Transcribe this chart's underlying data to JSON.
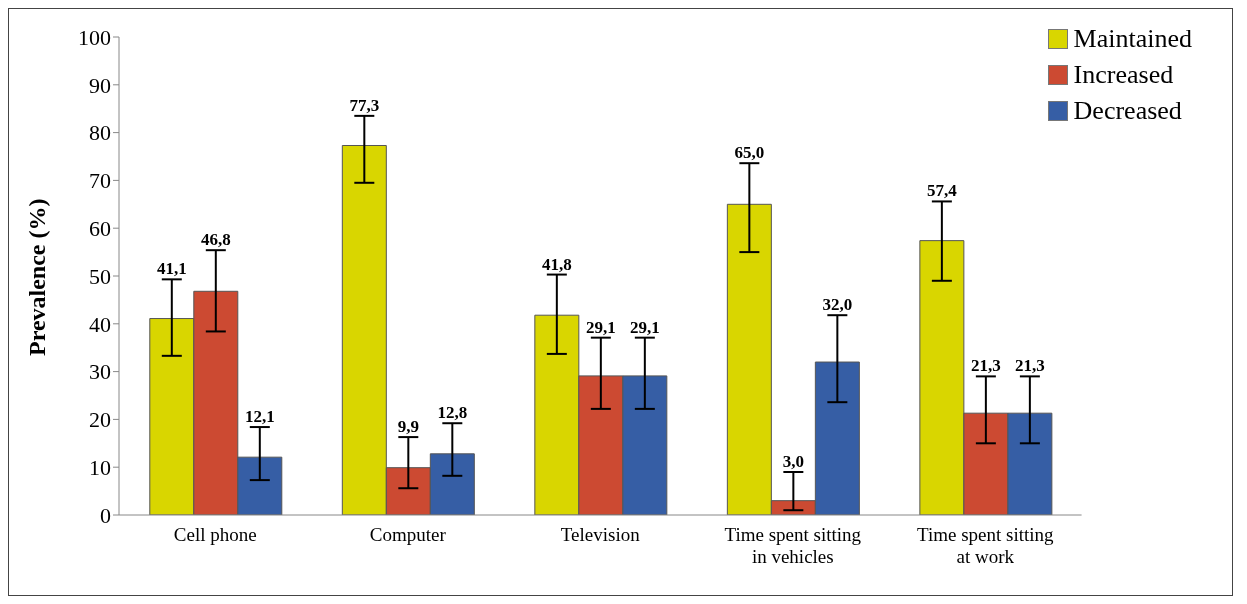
{
  "chart_data": {
    "type": "bar",
    "ylabel": "Prevalence (%)",
    "categories": [
      "Cell phone",
      "Computer",
      "Television",
      "Time spent sitting in vehicles",
      "Time spent sitting at work"
    ],
    "series": [
      {
        "name": "Maintained",
        "color": "#d9d600",
        "values": [
          41.1,
          77.3,
          41.8,
          65.0,
          57.4
        ],
        "value_labels": [
          "41,1",
          "77,3",
          "41,8",
          "65,0",
          "57,4"
        ],
        "errors": [
          [
            33.3,
            49.3
          ],
          [
            69.5,
            83.5
          ],
          [
            33.7,
            50.3
          ],
          [
            55.0,
            73.6
          ],
          [
            49.0,
            65.6
          ]
        ]
      },
      {
        "name": "Increased",
        "color": "#cc4a32",
        "values": [
          46.8,
          9.9,
          29.1,
          3.0,
          21.3
        ],
        "value_labels": [
          "46,8",
          "9,9",
          "29,1",
          "3,0",
          "21,3"
        ],
        "errors": [
          [
            38.4,
            55.4
          ],
          [
            5.6,
            16.3
          ],
          [
            22.2,
            37.1
          ],
          [
            1.0,
            9.0
          ],
          [
            15.0,
            29.0
          ]
        ]
      },
      {
        "name": "Decreased",
        "color": "#365ea5",
        "values": [
          12.1,
          12.8,
          29.1,
          32.0,
          21.3
        ],
        "value_labels": [
          "12,1",
          "12,8",
          "29,1",
          "32,0",
          "21,3"
        ],
        "errors": [
          [
            7.3,
            18.4
          ],
          [
            8.2,
            19.2
          ],
          [
            22.2,
            37.1
          ],
          [
            23.6,
            41.8
          ],
          [
            15.0,
            29.0
          ]
        ]
      }
    ],
    "ylim": [
      0,
      100
    ],
    "yticks": [
      0,
      10,
      20,
      30,
      40,
      50,
      60,
      70,
      80,
      90,
      100
    ],
    "grid": false,
    "legend": "top right"
  }
}
